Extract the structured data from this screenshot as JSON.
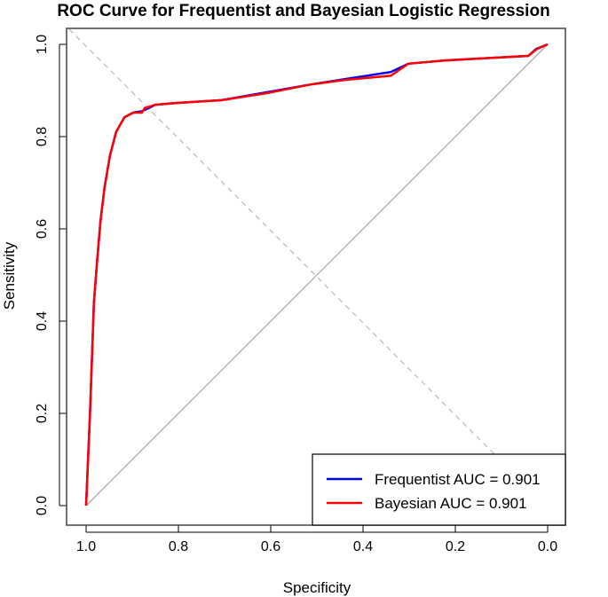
{
  "chart_data": {
    "type": "line",
    "title": "ROC Curve for Frequentist and Bayesian Logistic Regression",
    "xlabel": "Specificity",
    "ylabel": "Sensitivity",
    "xlim": [
      1.0,
      0.0
    ],
    "ylim": [
      0.0,
      1.0
    ],
    "x_reversed": true,
    "xticks": [
      "1.0",
      "0.8",
      "0.6",
      "0.4",
      "0.2",
      "0.0"
    ],
    "yticks": [
      "0.0",
      "0.2",
      "0.4",
      "0.6",
      "0.8",
      "1.0"
    ],
    "grid": false,
    "legend_placement": "bottom-right",
    "reference_lines": [
      "diagonal identity line (solid gray)",
      "anti-diagonal (dashed gray)"
    ],
    "series": [
      {
        "name": "Frequentist AUC = 0.901",
        "color": "#0000ff",
        "specificity": [
          1.0,
          0.996,
          0.992,
          0.987,
          0.983,
          0.977,
          0.969,
          0.96,
          0.948,
          0.935,
          0.917,
          0.898,
          0.879,
          0.868,
          0.85,
          0.802,
          0.706,
          0.61,
          0.513,
          0.437,
          0.34,
          0.302,
          0.225,
          0.042,
          0.025,
          0.0
        ],
        "sensitivity": [
          0.0,
          0.096,
          0.19,
          0.33,
          0.44,
          0.52,
          0.615,
          0.69,
          0.76,
          0.81,
          0.842,
          0.852,
          0.855,
          0.86,
          0.869,
          0.873,
          0.879,
          0.896,
          0.913,
          0.925,
          0.94,
          0.958,
          0.965,
          0.975,
          0.99,
          1.0
        ]
      },
      {
        "name": "Bayesian AUC = 0.901",
        "color": "#ff0000",
        "specificity": [
          1.0,
          0.996,
          0.992,
          0.987,
          0.983,
          0.977,
          0.969,
          0.96,
          0.948,
          0.935,
          0.917,
          0.898,
          0.879,
          0.873,
          0.85,
          0.802,
          0.706,
          0.61,
          0.513,
          0.437,
          0.34,
          0.302,
          0.225,
          0.042,
          0.023,
          0.0
        ],
        "sensitivity": [
          0.0,
          0.096,
          0.19,
          0.33,
          0.44,
          0.52,
          0.615,
          0.69,
          0.76,
          0.81,
          0.842,
          0.852,
          0.852,
          0.862,
          0.869,
          0.873,
          0.879,
          0.894,
          0.913,
          0.923,
          0.932,
          0.958,
          0.965,
          0.975,
          0.99,
          1.0
        ]
      }
    ]
  }
}
